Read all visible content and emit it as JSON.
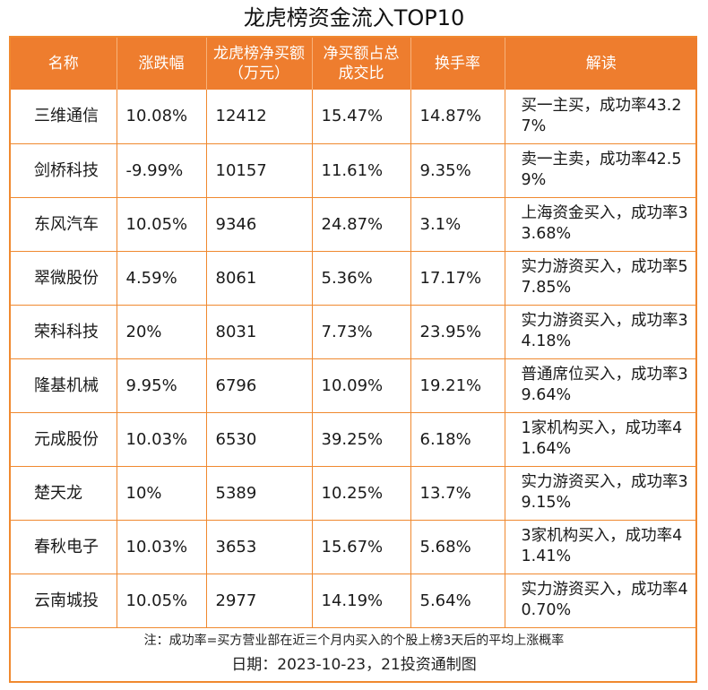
{
  "title": "龙虎榜资金流入TOP10",
  "columns": [
    "名称",
    "涨跌幅",
    "龙虎榜净买额（万元）",
    "净买额占总成交比",
    "换手率",
    "解读"
  ],
  "rows": [
    {
      "name": "三维通信",
      "change": "10.08%",
      "net_buy": "12412",
      "ratio": "15.47%",
      "turnover": "14.87%",
      "interpretation": "买一主买，成功率43.27%"
    },
    {
      "name": "剑桥科技",
      "change": "-9.99%",
      "net_buy": "10157",
      "ratio": "11.61%",
      "turnover": "9.35%",
      "interpretation": "卖一主卖，成功率42.59%"
    },
    {
      "name": "东风汽车",
      "change": "10.05%",
      "net_buy": "9346",
      "ratio": "24.87%",
      "turnover": "3.1%",
      "interpretation": "上海资金买入，成功率33.68%"
    },
    {
      "name": "翠微股份",
      "change": "4.59%",
      "net_buy": "8061",
      "ratio": "5.36%",
      "turnover": "17.17%",
      "interpretation": "实力游资买入，成功率57.85%"
    },
    {
      "name": "荣科科技",
      "change": "20%",
      "net_buy": "8031",
      "ratio": "7.73%",
      "turnover": "23.95%",
      "interpretation": "实力游资买入，成功率34.18%"
    },
    {
      "name": "隆基机械",
      "change": "9.95%",
      "net_buy": "6796",
      "ratio": "10.09%",
      "turnover": "19.21%",
      "interpretation": "普通席位买入，成功率39.64%"
    },
    {
      "name": "元成股份",
      "change": "10.03%",
      "net_buy": "6530",
      "ratio": "39.25%",
      "turnover": "6.18%",
      "interpretation": "1家机构买入，成功率41.64%"
    },
    {
      "name": "楚天龙",
      "change": "10%",
      "net_buy": "5389",
      "ratio": "10.25%",
      "turnover": "13.7%",
      "interpretation": "实力游资买入，成功率39.15%"
    },
    {
      "name": "春秋电子",
      "change": "10.03%",
      "net_buy": "3653",
      "ratio": "15.67%",
      "turnover": "5.68%",
      "interpretation": "3家机构买入，成功率41.41%"
    },
    {
      "name": "云南城投",
      "change": "10.05%",
      "net_buy": "2977",
      "ratio": "14.19%",
      "turnover": "5.64%",
      "interpretation": "实力游资买入，成功率40.70%"
    }
  ],
  "footnote": "注：成功率=买方营业部在近三个月内买入的个股上榜3天后的平均上涨概率",
  "date_line": "日期：2023-10-23，21投资通制图",
  "colors": {
    "header_bg": "#ee7d2e",
    "border": "#f0892f",
    "header_text": "#ffffff"
  }
}
